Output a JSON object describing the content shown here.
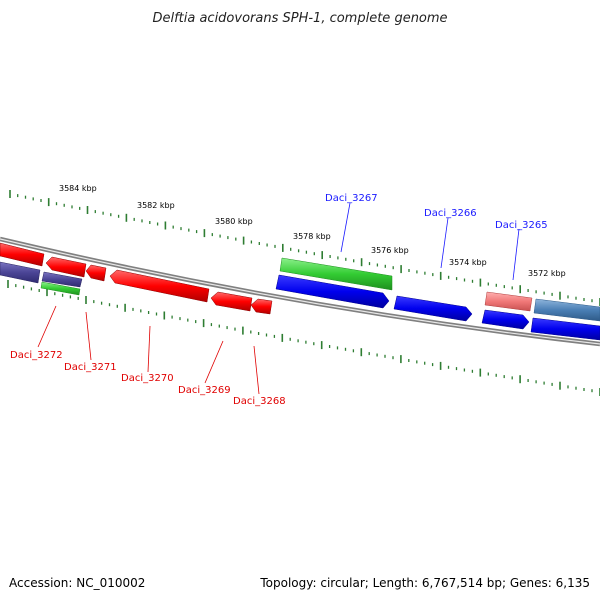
{
  "title": "Delftia acidovorans SPH-1, complete genome",
  "footer": {
    "accession": "Accession: NC_010002",
    "stats": "Topology: circular; Length: 6,767,514 bp; Genes: 6,135"
  },
  "colors": {
    "backbone": "#808080",
    "tick": "#2e7d32",
    "forward_label": "#1a1aff",
    "reverse_label": "#e00000"
  },
  "kbp_labels": [
    "3584 kbp",
    "3582 kbp",
    "3580 kbp",
    "3578 kbp",
    "3576 kbp",
    "3574 kbp",
    "3572 kbp"
  ],
  "gene_labels": {
    "forward": [
      "Daci_3267",
      "Daci_3266",
      "Daci_3265"
    ],
    "reverse": [
      "Daci_3272",
      "Daci_3271",
      "Daci_3270",
      "Daci_3269",
      "Daci_3268"
    ]
  }
}
